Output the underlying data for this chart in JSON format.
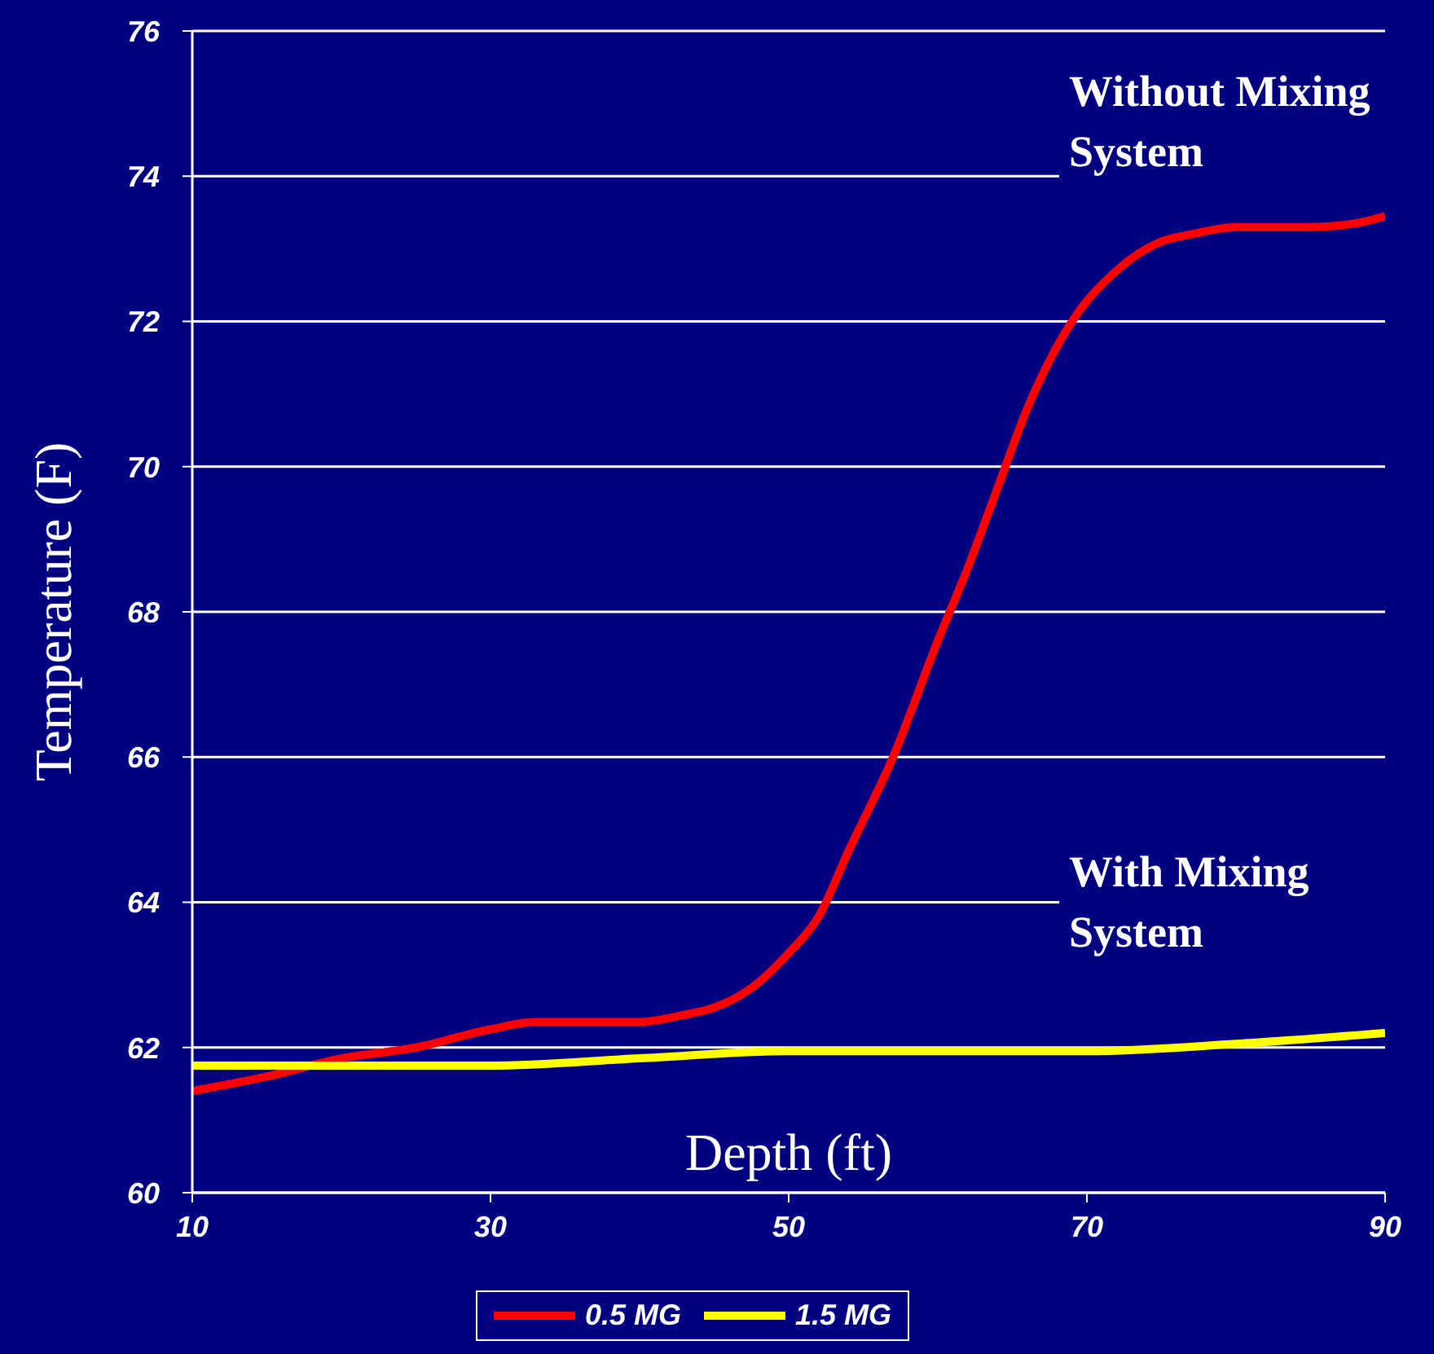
{
  "chart_data": {
    "type": "line",
    "xlabel": "Depth (ft)",
    "ylabel": "Temperature (F)",
    "xlim": [
      10,
      90
    ],
    "xticks": [
      10,
      30,
      50,
      70,
      90
    ],
    "ylim": [
      60,
      76
    ],
    "yticks": [
      60,
      62,
      64,
      66,
      68,
      70,
      72,
      74,
      76
    ],
    "grid": "y",
    "legend": "bottom",
    "marker": "none",
    "line_style": "solid",
    "series": [
      {
        "name": "0.5 MG",
        "color": "#ff0000",
        "x": [
          10,
          15,
          20,
          25,
          30,
          33,
          40,
          43,
          45,
          47,
          48,
          50,
          52,
          54,
          57,
          60,
          62,
          64,
          66,
          69,
          72,
          75,
          77,
          80,
          85,
          88,
          90
        ],
        "values": [
          61.4,
          61.6,
          61.85,
          62.0,
          62.25,
          62.35,
          62.35,
          62.45,
          62.55,
          62.75,
          62.9,
          63.3,
          63.8,
          64.7,
          66.0,
          67.6,
          68.6,
          69.7,
          70.8,
          72.0,
          72.7,
          73.1,
          73.2,
          73.3,
          73.3,
          73.35,
          73.45
        ]
      },
      {
        "name": "1.5 MG",
        "color": "#ffff00",
        "x": [
          10,
          20,
          30,
          40,
          50,
          60,
          70,
          80,
          90
        ],
        "values": [
          61.75,
          61.75,
          61.75,
          61.85,
          61.95,
          61.95,
          61.95,
          62.05,
          62.2
        ]
      }
    ],
    "annotations": [
      "Without Mixing System",
      "With Mixing System"
    ]
  }
}
